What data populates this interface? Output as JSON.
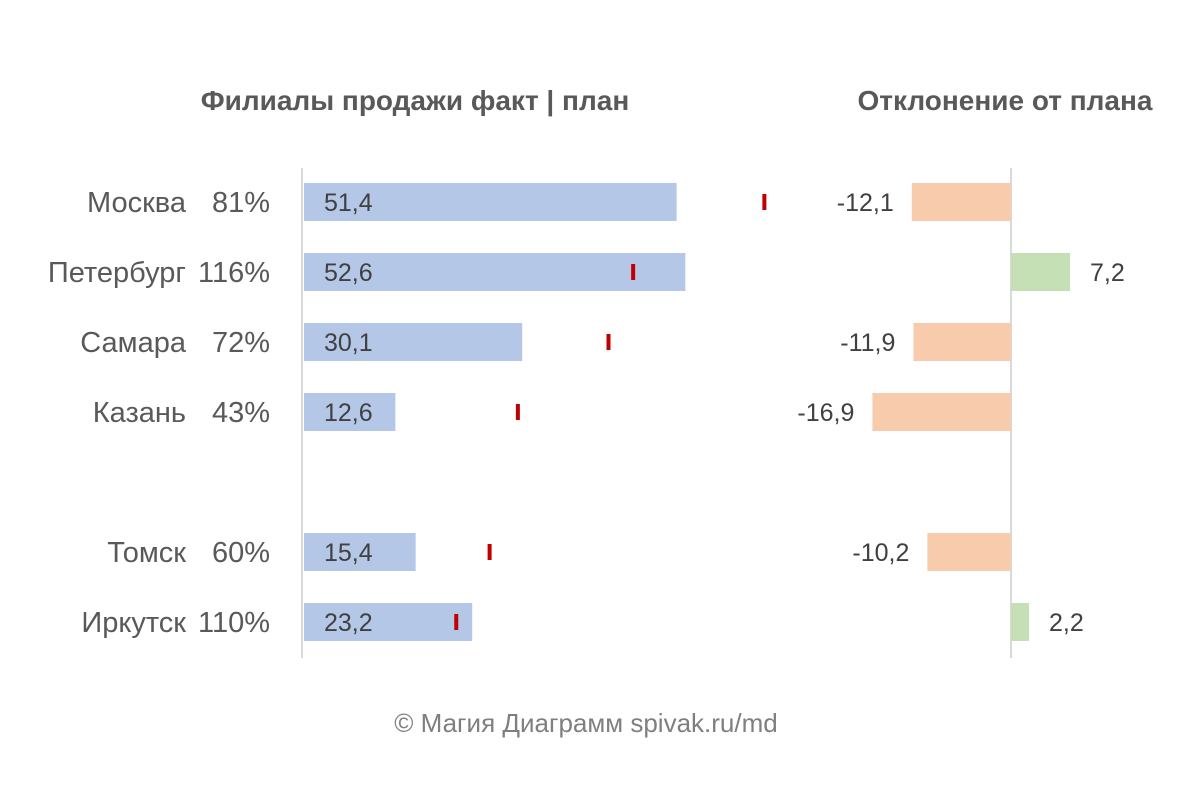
{
  "chart_data": [
    {
      "type": "bar",
      "orientation": "horizontal",
      "title": "Филиалы продажи факт | план",
      "categories": [
        "Москва",
        "Петербург",
        "Самара",
        "Казань",
        "Томск",
        "Иркутск"
      ],
      "percent_labels": [
        "81%",
        "116%",
        "72%",
        "43%",
        "60%",
        "110%"
      ],
      "series": [
        {
          "name": "факт",
          "values": [
            51.4,
            52.6,
            30.1,
            12.6,
            15.4,
            23.2
          ],
          "labels": [
            "51,4",
            "52,6",
            "30,1",
            "12,6",
            "15,4",
            "23,2"
          ]
        },
        {
          "name": "план",
          "values": [
            63.5,
            45.4,
            42.0,
            29.5,
            25.6,
            21.0
          ]
        }
      ],
      "xlim": [
        0,
        100
      ]
    },
    {
      "type": "bar",
      "orientation": "horizontal",
      "title": "Отклонение от плана",
      "categories": [
        "Москва",
        "Петербург",
        "Самара",
        "Казань",
        "Томск",
        "Иркутск"
      ],
      "values": [
        -12.1,
        7.2,
        -11.9,
        -16.9,
        -10.2,
        2.2
      ],
      "labels": [
        "-12,1",
        "7,2",
        "-11,9",
        "-16,9",
        "-10,2",
        "2,2"
      ],
      "xlim": [
        -25,
        25
      ]
    }
  ],
  "colors": {
    "fact": "#b4c7e7",
    "plan": "#c00000",
    "negative": "#f8cbad",
    "positive": "#c5e0b4",
    "axis": "#d9d9d9",
    "text": "#595959"
  },
  "credit": "© Магия Диаграмм spivak.ru/md"
}
